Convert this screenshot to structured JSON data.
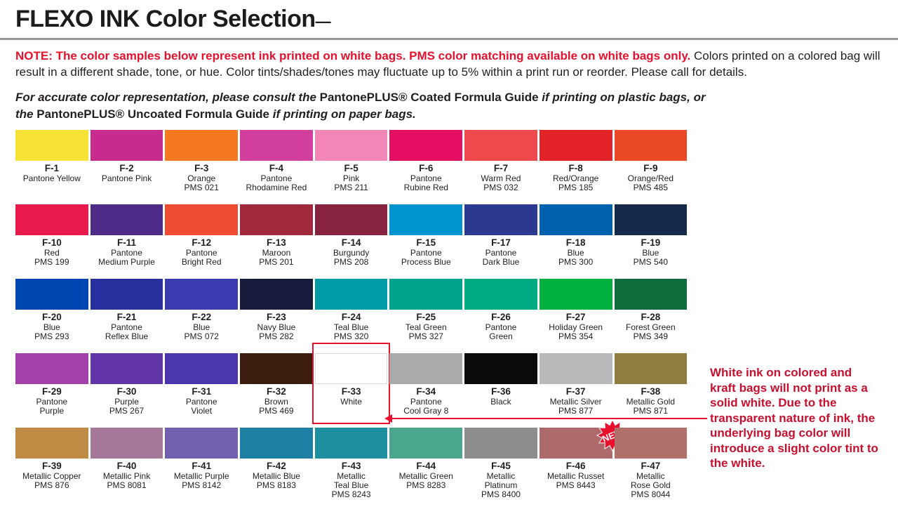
{
  "page": {
    "title": "FLEXO INK Color Selection",
    "title_dash": "—"
  },
  "note": {
    "label": "NOTE:",
    "highlight": "  The color samples below represent ink printed on white bags. PMS color matching available on white bags only.",
    "body": "  Colors printed on a colored bag will result in a different shade, tone, or hue. Color tints/shades/tones may fluctuate up to 5% within a print run or reorder. Please call for details."
  },
  "formula_note": {
    "seg1": "For accurate color representation, please consult the ",
    "bold1": "PantonePLUS® Coated Formula Guide",
    "seg2": " if printing on plastic bags, or the ",
    "bold2": "PantonePLUS® Uncoated Formula Guide",
    "seg3": " if printing on paper bags."
  },
  "white_ink_note": "White ink on colored and kraft bags will not print as a solid white. Due to the transparent nature of ink, the underlying bag color will introduce a slight color tint to the white.",
  "new_badge_label": "NEW",
  "colors": {
    "accent_red": "#E8112D",
    "white_note_red": "#C8102E",
    "text_dark": "#231F20",
    "rule_gray": "#97989A"
  },
  "swatches": [
    {
      "code": "F-1",
      "desc": [
        "Pantone Yellow"
      ],
      "hex": "#F7E338"
    },
    {
      "code": "F-2",
      "desc": [
        "Pantone Pink"
      ],
      "hex": "#C72B8E"
    },
    {
      "code": "F-3",
      "desc": [
        "Orange",
        "PMS 021"
      ],
      "hex": "#F5791F"
    },
    {
      "code": "F-4",
      "desc": [
        "Pantone",
        "Rhodamine Red"
      ],
      "hex": "#D23E9B"
    },
    {
      "code": "F-5",
      "desc": [
        "Pink",
        "PMS 211"
      ],
      "hex": "#F287B7"
    },
    {
      "code": "F-6",
      "desc": [
        "Pantone",
        "Rubine Red"
      ],
      "hex": "#E40E62"
    },
    {
      "code": "F-7",
      "desc": [
        "Warm Red",
        "PMS 032"
      ],
      "hex": "#EE4A4E"
    },
    {
      "code": "F-8",
      "desc": [
        "Red/Orange",
        "PMS 185"
      ],
      "hex": "#E32228"
    },
    {
      "code": "F-9",
      "desc": [
        "Orange/Red",
        "PMS 485"
      ],
      "hex": "#EA4827"
    },
    {
      "code": "F-10",
      "desc": [
        "Red",
        "PMS 199"
      ],
      "hex": "#E81A4B"
    },
    {
      "code": "F-11",
      "desc": [
        "Pantone",
        "Medium Purple"
      ],
      "hex": "#4E2B87"
    },
    {
      "code": "F-12",
      "desc": [
        "Pantone",
        "Bright Red"
      ],
      "hex": "#F04B33"
    },
    {
      "code": "F-13",
      "desc": [
        "Maroon",
        "PMS 201"
      ],
      "hex": "#A02A3C"
    },
    {
      "code": "F-14",
      "desc": [
        "Burgundy",
        "PMS 208"
      ],
      "hex": "#88233F"
    },
    {
      "code": "F-15",
      "desc": [
        "Pantone",
        "Process Blue"
      ],
      "hex": "#0093D0"
    },
    {
      "code": "F-17",
      "desc": [
        "Pantone",
        "Dark Blue"
      ],
      "hex": "#2B3A90"
    },
    {
      "code": "F-18",
      "desc": [
        "Blue",
        "PMS 300"
      ],
      "hex": "#0061AE"
    },
    {
      "code": "F-19",
      "desc": [
        "Blue",
        "PMS 540"
      ],
      "hex": "#15294B"
    },
    {
      "code": "F-20",
      "desc": [
        "Blue",
        "PMS 293"
      ],
      "hex": "#0046B2"
    },
    {
      "code": "F-21",
      "desc": [
        "Pantone",
        "Reflex Blue"
      ],
      "hex": "#282F9F"
    },
    {
      "code": "F-22",
      "desc": [
        "Blue",
        "PMS 072"
      ],
      "hex": "#3A3BAE"
    },
    {
      "code": "F-23",
      "desc": [
        "Navy Blue",
        "PMS 282"
      ],
      "hex": "#181C3C"
    },
    {
      "code": "F-24",
      "desc": [
        "Teal Blue",
        "PMS 320"
      ],
      "hex": "#009CA6"
    },
    {
      "code": "F-25",
      "desc": [
        "Teal Green",
        "PMS 327"
      ],
      "hex": "#00A48C"
    },
    {
      "code": "F-26",
      "desc": [
        "Pantone",
        "Green"
      ],
      "hex": "#00AB84"
    },
    {
      "code": "F-27",
      "desc": [
        "Holiday Green",
        "PMS 354"
      ],
      "hex": "#00B140"
    },
    {
      "code": "F-28",
      "desc": [
        "Forest Green",
        "PMS 349"
      ],
      "hex": "#0E6B3B"
    },
    {
      "code": "F-29",
      "desc": [
        "Pantone",
        "Purple"
      ],
      "hex": "#A242A8"
    },
    {
      "code": "F-30",
      "desc": [
        "Purple",
        "PMS 267"
      ],
      "hex": "#6134A8"
    },
    {
      "code": "F-31",
      "desc": [
        "Pantone",
        "Violet"
      ],
      "hex": "#4C36AF"
    },
    {
      "code": "F-32",
      "desc": [
        "Brown",
        "PMS 469"
      ],
      "hex": "#3B1E0D"
    },
    {
      "code": "F-33",
      "desc": [
        "White"
      ],
      "hex": "#FFFFFF",
      "highlight": true,
      "light": true
    },
    {
      "code": "F-34",
      "desc": [
        "Pantone",
        "Cool Gray 8"
      ],
      "hex": "#A9AAAC"
    },
    {
      "code": "F-36",
      "desc": [
        "Black"
      ],
      "hex": "#0B0B0C"
    },
    {
      "code": "F-37",
      "desc": [
        "Metallic Silver",
        "PMS 877"
      ],
      "hex": "#B8BABB"
    },
    {
      "code": "F-38",
      "desc": [
        "Metallic Gold",
        "PMS 871"
      ],
      "hex": "#8F7C41"
    },
    {
      "code": "F-39",
      "desc": [
        "Metallic Copper",
        "PMS 876"
      ],
      "hex": "#BF8B45"
    },
    {
      "code": "F-40",
      "desc": [
        "Metallic Pink",
        "PMS 8081"
      ],
      "hex": "#A5789A"
    },
    {
      "code": "F-41",
      "desc": [
        "Metallic Purple",
        "PMS 8142"
      ],
      "hex": "#7060AF"
    },
    {
      "code": "F-42",
      "desc": [
        "Metallic Blue",
        "PMS 8183"
      ],
      "hex": "#1F7FA2"
    },
    {
      "code": "F-43",
      "desc": [
        "Metallic",
        "Teal Blue",
        "PMS 8243"
      ],
      "hex": "#1D8FA1"
    },
    {
      "code": "F-44",
      "desc": [
        "Metallic Green",
        "PMS 8283"
      ],
      "hex": "#4AA78D"
    },
    {
      "code": "F-45",
      "desc": [
        "Metallic",
        "Platinum",
        "PMS 8400"
      ],
      "hex": "#8B8D8F"
    },
    {
      "code": "F-46",
      "desc": [
        "Metallic Russet",
        "PMS 8443"
      ],
      "hex": "#AE6A6B",
      "badge": true
    },
    {
      "code": "F-47",
      "desc": [
        "Metallic",
        "Rose Gold",
        "PMS 8044"
      ],
      "hex": "#AF7169"
    }
  ]
}
